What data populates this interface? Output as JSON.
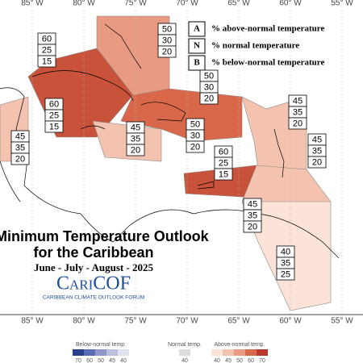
{
  "map": {
    "lon_labels": [
      "85° W",
      "80° W",
      "75° W",
      "70° W",
      "65° W",
      "60° W",
      "55° W"
    ],
    "key": [
      {
        "letter": "A",
        "text": "% above-normal temperature"
      },
      {
        "letter": "N",
        "text": "% normal temperature"
      },
      {
        "letter": "B",
        "text": "% below-normal temperature"
      }
    ],
    "title": "Minimum Temperature Outlook",
    "subtitle": "for the Caribbean",
    "season": "June - July - August - 2025",
    "logo": "CariCOF",
    "logo_sub": "CARIBBEAN CLIMATE OUTLOOK FORUM",
    "regions": [
      {
        "above": 60,
        "normal": 25,
        "below": 15
      },
      {
        "above": 50,
        "normal": 30,
        "below": 20
      },
      {
        "above": 50,
        "normal": 30,
        "below": 20
      },
      {
        "above": 60,
        "normal": 25,
        "below": 15
      },
      {
        "above": 45,
        "normal": 35,
        "below": 20
      },
      {
        "above": 50,
        "normal": 30,
        "below": 20
      },
      {
        "above": 45,
        "normal": 35,
        "below": 20
      },
      {
        "above": 45,
        "normal": 35,
        "below": 20
      },
      {
        "above": 45,
        "normal": 35,
        "below": 20
      },
      {
        "above": 60,
        "normal": 25,
        "below": 15
      },
      {
        "above": 45,
        "normal": 35,
        "below": 20
      },
      {
        "above": 40,
        "normal": 35,
        "below": 25
      }
    ],
    "colorbar": {
      "below": {
        "title": "Below-normal temp.",
        "ticks": [
          70,
          60,
          50,
          45,
          40
        ],
        "colors": [
          "#2b3f8f",
          "#5b6bb5",
          "#8e96cb",
          "#bcc0e0",
          "#e0e2f0"
        ]
      },
      "normal": {
        "title": "Normal temp.",
        "ticks": [
          40
        ],
        "colors": [
          "#dddddd"
        ]
      },
      "above": {
        "title": "Above-normal temp.",
        "ticks": [
          40,
          45,
          50,
          60,
          70
        ],
        "colors": [
          "#fbe3d8",
          "#f4c3b0",
          "#e99a82",
          "#d9684b",
          "#b8382a"
        ]
      }
    }
  }
}
